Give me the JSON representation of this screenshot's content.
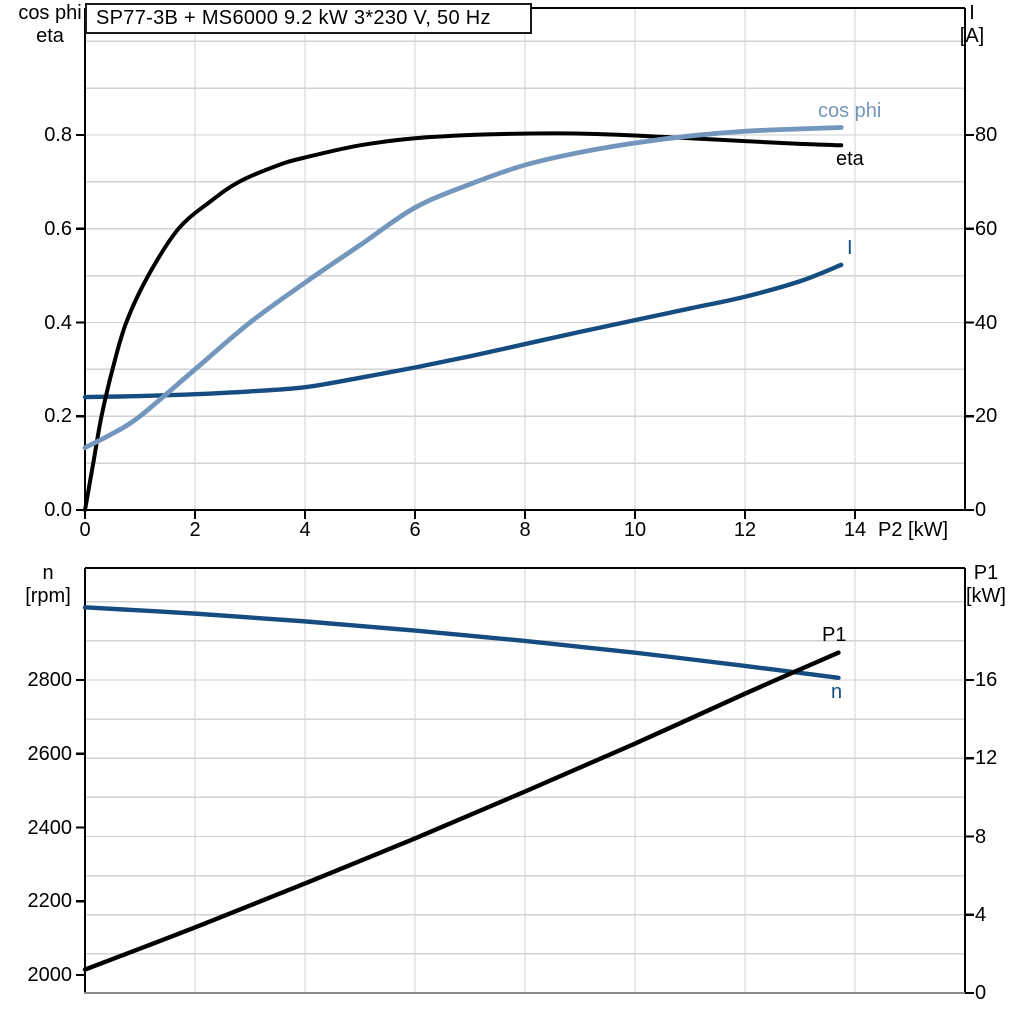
{
  "title": "SP77-3B + MS6000   9.2 kW   3*230 V, 50 Hz",
  "colors": {
    "steel_blue": "#7396bd",
    "dark_blue": "#164d80",
    "black": "#000000",
    "grid": "#d2d2d2",
    "axis": "#000000",
    "frame_gray": "#8a8a8a",
    "background": "#ffffff"
  },
  "chart_data": [
    {
      "type": "line",
      "id": "top",
      "x_axis": {
        "label": "P2 [kW]",
        "min": 0,
        "max": 16,
        "ticks": [
          0,
          2,
          4,
          6,
          8,
          10,
          12,
          14
        ]
      },
      "y_left": {
        "label_lines": [
          "cos phi",
          "eta"
        ],
        "tick_values": [
          0.0,
          0.2,
          0.4,
          0.6,
          0.8
        ],
        "tick_labels": [
          "0.0",
          "0.2",
          "0.4",
          "0.6",
          "0.8"
        ],
        "grid_from": 0.1,
        "grid_step": 0.1,
        "grid_to": 1.0
      },
      "y_right": {
        "label_lines": [
          "I",
          "[A]"
        ],
        "tick_values": [
          0,
          20,
          40,
          60,
          80
        ],
        "tick_labels": [
          "0",
          "20",
          "40",
          "60",
          "80"
        ]
      },
      "series": [
        {
          "name": "I",
          "color": "dark_blue",
          "width": 4.4,
          "axis": "right",
          "x": [
            0,
            1,
            2,
            3,
            4,
            5,
            6,
            7,
            8,
            9,
            10,
            11,
            12,
            13,
            13.75
          ],
          "y": [
            24.1,
            24.3,
            24.7,
            25.3,
            26.2,
            28.2,
            30.4,
            32.8,
            35.4,
            38.0,
            40.5,
            43.0,
            45.5,
            48.8,
            52.3
          ]
        },
        {
          "name": "eta",
          "color": "black",
          "width": 4.0,
          "axis": "left",
          "x": [
            0,
            0.15,
            0.3,
            0.5,
            0.75,
            1.15,
            1.7,
            2.3,
            2.8,
            3.5,
            4,
            5,
            6,
            7,
            8,
            9,
            10,
            11,
            12,
            13,
            13.75
          ],
          "y": [
            0,
            0.1,
            0.2,
            0.3,
            0.4,
            0.5,
            0.6,
            0.66,
            0.7,
            0.735,
            0.752,
            0.778,
            0.793,
            0.8,
            0.803,
            0.803,
            0.799,
            0.793,
            0.787,
            0.781,
            0.778
          ]
        },
        {
          "name": "cos phi",
          "color": "steel_blue",
          "width": 4.8,
          "axis": "left",
          "x": [
            0,
            0.5,
            1,
            2,
            3,
            4,
            5,
            6,
            7,
            8,
            9,
            10,
            11,
            12,
            13,
            13.75
          ],
          "y": [
            0.133,
            0.163,
            0.2,
            0.3,
            0.4,
            0.485,
            0.565,
            0.645,
            0.695,
            0.736,
            0.763,
            0.783,
            0.798,
            0.808,
            0.813,
            0.816
          ]
        }
      ]
    },
    {
      "type": "line",
      "id": "bottom",
      "x_axis": {
        "label": "",
        "min": 0,
        "max": 16,
        "ticks": []
      },
      "y_left": {
        "label_lines": [
          "n",
          "[rpm]"
        ],
        "tick_values": [
          2000,
          2200,
          2400,
          2600,
          2800
        ],
        "tick_labels": [
          "2000",
          "2200",
          "2400",
          "2600",
          "2800"
        ]
      },
      "y_right": {
        "label_lines": [
          "P1",
          "[kW]"
        ],
        "tick_values": [
          0,
          4,
          8,
          12,
          16
        ],
        "tick_labels": [
          "0",
          "4",
          "8",
          "12",
          "16"
        ],
        "grid_from": 2,
        "grid_step": 2,
        "grid_to": 20
      },
      "series": [
        {
          "name": "n",
          "color": "dark_blue",
          "width": 4.4,
          "axis": "left",
          "x": [
            0,
            2,
            4,
            6,
            8,
            10,
            12,
            13.7
          ],
          "y": [
            2997,
            2980,
            2959,
            2934,
            2906,
            2874,
            2838,
            2806
          ]
        },
        {
          "name": "P1",
          "color": "black",
          "width": 4.4,
          "axis": "right",
          "x": [
            0,
            2,
            4,
            6,
            8,
            10,
            12,
            13.7
          ],
          "y": [
            1.2,
            3.35,
            5.6,
            7.9,
            10.3,
            12.75,
            15.3,
            17.4
          ]
        }
      ]
    }
  ]
}
